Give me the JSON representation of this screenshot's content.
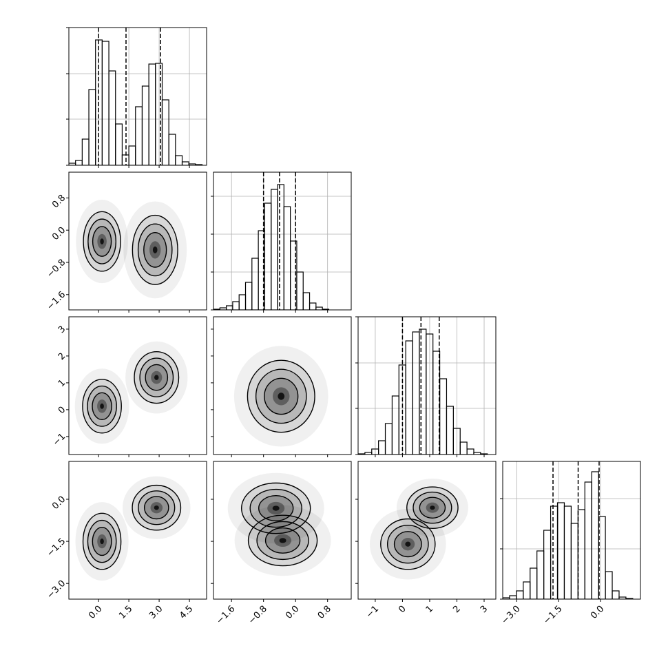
{
  "chart_data": [
    {
      "type": "histogram",
      "xlim": [
        -1.47,
        5.35
      ],
      "xticks": [
        {
          "value": 0,
          "label": "0.0"
        },
        1.5,
        {
          "value": 3,
          "label": "3.0"
        },
        4.5
      ],
      "ylim": [
        0,
        200
      ],
      "yticks": [
        0,
        67,
        133,
        200
      ],
      "grid": true,
      "bins": [
        -1.47,
        -1.14,
        -0.81,
        -0.48,
        -0.15,
        0.18,
        0.51,
        0.84,
        1.17,
        1.5,
        1.83,
        2.16,
        2.49,
        2.82,
        3.15,
        3.48,
        3.81,
        4.14,
        4.47,
        4.8,
        5.13
      ],
      "values": [
        3,
        7,
        38,
        110,
        182,
        180,
        137,
        60,
        15,
        28,
        85,
        115,
        147,
        148,
        95,
        45,
        14,
        5,
        2,
        1
      ],
      "quantiles": [
        0.0,
        1.36,
        3.07
      ]
    },
    {
      "type": "contour",
      "xlim": [
        -1.47,
        5.35
      ],
      "xticks": [
        {
          "value": 0,
          "label": "0.0"
        },
        1.5,
        {
          "value": 3,
          "label": "3.0"
        },
        4.5
      ],
      "ylim": [
        -1.98,
        1.44
      ],
      "yticks": [
        {
          "value": -1.6,
          "label": "−1.6"
        },
        {
          "value": -0.8,
          "label": "−0.8"
        },
        {
          "value": 0,
          "label": "0.0"
        },
        0.8
      ],
      "modes": [
        {
          "x": 0.17,
          "y": -0.28,
          "sx": 0.46,
          "sy": 0.37
        },
        {
          "x": 2.8,
          "y": -0.49,
          "sx": 0.56,
          "sy": 0.43
        }
      ]
    },
    {
      "type": "histogram",
      "xlim": [
        -2.05,
        1.39
      ],
      "xticks": [
        {
          "value": -1.6,
          "label": "−1.6"
        },
        {
          "value": -0.8,
          "label": "−0.8"
        },
        {
          "value": 0,
          "label": "0.0"
        },
        0.8
      ],
      "ylim": [
        0,
        200
      ],
      "yticks": [
        0,
        55,
        110,
        165
      ],
      "grid": true,
      "bins": [
        -2.05,
        -1.89,
        -1.73,
        -1.57,
        -1.41,
        -1.25,
        -1.09,
        -0.93,
        -0.77,
        -0.61,
        -0.45,
        -0.29,
        -0.13,
        0.03,
        0.19,
        0.35,
        0.51,
        0.67,
        0.83,
        0.99,
        1.15
      ],
      "values": [
        1,
        3,
        6,
        12,
        22,
        40,
        75,
        115,
        155,
        175,
        182,
        150,
        100,
        55,
        25,
        10,
        4,
        1,
        0,
        0
      ],
      "quantiles": [
        -0.8,
        -0.4,
        0.0
      ]
    },
    {
      "type": "contour",
      "xlim": [
        -1.47,
        5.35
      ],
      "xticks": [
        {
          "value": 0,
          "label": "0.0"
        },
        1.5,
        {
          "value": 3,
          "label": "3.0"
        },
        4.5
      ],
      "ylim": [
        -1.67,
        3.46
      ],
      "yticks": [
        {
          "value": -1,
          "label": "−1"
        },
        0,
        1,
        2,
        3
      ],
      "modes": [
        {
          "x": 0.17,
          "y": 0.13,
          "sx": 0.48,
          "sy": 0.5
        },
        {
          "x": 2.87,
          "y": 1.2,
          "sx": 0.55,
          "sy": 0.48
        }
      ]
    },
    {
      "type": "contour",
      "xlim": [
        -2.05,
        1.39
      ],
      "xticks": [
        {
          "value": -1.6,
          "label": "−1.6"
        },
        {
          "value": -0.8,
          "label": "−0.8"
        },
        {
          "value": 0,
          "label": "0.0"
        },
        0.8
      ],
      "ylim": [
        -1.67,
        3.46
      ],
      "yticks": [
        {
          "value": -1,
          "label": "−1"
        },
        0,
        1,
        2,
        3
      ],
      "modes": [
        {
          "x": -0.36,
          "y": 0.5,
          "sx": 0.42,
          "sy": 0.67
        }
      ]
    },
    {
      "type": "histogram",
      "xlim": [
        -1.63,
        3.43
      ],
      "xticks": [
        {
          "value": -1,
          "label": "−1"
        },
        0,
        1,
        2,
        3
      ],
      "ylim": [
        0,
        200
      ],
      "yticks": [
        0,
        67,
        133,
        200
      ],
      "grid": true,
      "bins": [
        -1.63,
        -1.38,
        -1.13,
        -0.88,
        -0.63,
        -0.38,
        -0.13,
        0.12,
        0.37,
        0.62,
        0.87,
        1.12,
        1.37,
        1.62,
        1.87,
        2.12,
        2.37,
        2.62,
        2.87,
        3.12,
        3.37
      ],
      "values": [
        1,
        3,
        8,
        20,
        45,
        85,
        130,
        165,
        178,
        182,
        175,
        150,
        110,
        70,
        38,
        18,
        8,
        3,
        1,
        0
      ],
      "quantiles": [
        0.0,
        0.68,
        1.35
      ]
    },
    {
      "type": "contour",
      "xlim": [
        -1.47,
        5.35
      ],
      "xticks": [
        {
          "value": 0,
          "label": "0.0"
        },
        1.5,
        {
          "value": 3,
          "label": "3.0"
        },
        4.5
      ],
      "ylim": [
        -3.56,
        1.35
      ],
      "yticks": [
        {
          "value": -3,
          "label": "−3.0"
        },
        {
          "value": -1.5,
          "label": "−1.5"
        },
        {
          "value": 0,
          "label": "0.0"
        }
      ],
      "modes": [
        {
          "x": 0.17,
          "y": -1.5,
          "sx": 0.47,
          "sy": 0.5
        },
        {
          "x": 2.87,
          "y": -0.3,
          "sx": 0.6,
          "sy": 0.4
        }
      ]
    },
    {
      "type": "contour",
      "xlim": [
        -2.05,
        1.39
      ],
      "xticks": [
        {
          "value": -1.6,
          "label": "−1.6"
        },
        {
          "value": -0.8,
          "label": "−0.8"
        },
        {
          "value": 0,
          "label": "0.0"
        },
        0.8
      ],
      "ylim": [
        -3.56,
        1.35
      ],
      "yticks": [
        {
          "value": -3,
          "label": "−3.0"
        },
        {
          "value": -1.5,
          "label": "−1.5"
        },
        {
          "value": 0,
          "label": "0.0"
        }
      ],
      "modes": [
        {
          "x": -0.49,
          "y": -0.32,
          "sx": 0.43,
          "sy": 0.45
        },
        {
          "x": -0.32,
          "y": -1.47,
          "sx": 0.43,
          "sy": 0.45
        }
      ]
    },
    {
      "type": "contour",
      "xlim": [
        -1.63,
        3.43
      ],
      "xticks": [
        {
          "value": -1,
          "label": "−1"
        },
        0,
        1,
        2,
        3
      ],
      "ylim": [
        -3.56,
        1.35
      ],
      "yticks": [
        {
          "value": -3,
          "label": "−3.0"
        },
        {
          "value": -1.5,
          "label": "−1.5"
        },
        {
          "value": 0,
          "label": "0.0"
        }
      ],
      "modes": [
        {
          "x": 0.2,
          "y": -1.6,
          "sx": 0.5,
          "sy": 0.45
        },
        {
          "x": 1.1,
          "y": -0.3,
          "sx": 0.47,
          "sy": 0.37
        }
      ]
    },
    {
      "type": "histogram",
      "xlim": [
        -3.5,
        1.43
      ],
      "xticks": [
        {
          "value": -3,
          "label": "−3.0"
        },
        {
          "value": -1.5,
          "label": "−1.5"
        },
        {
          "value": 0,
          "label": "0.0"
        }
      ],
      "ylim": [
        0,
        200
      ],
      "yticks": [
        0,
        73,
        146
      ],
      "grid": true,
      "bins": [
        -3.5,
        -3.255,
        -3.01,
        -2.765,
        -2.52,
        -2.275,
        -2.03,
        -1.785,
        -1.54,
        -1.295,
        -1.05,
        -0.805,
        -0.56,
        -0.315,
        -0.07,
        0.175,
        0.42,
        0.665,
        0.91,
        1.155,
        1.4
      ],
      "values": [
        2,
        5,
        12,
        25,
        45,
        70,
        100,
        135,
        140,
        135,
        110,
        130,
        170,
        185,
        120,
        40,
        12,
        3,
        1,
        0
      ],
      "quantiles": [
        -1.7,
        -0.8,
        -0.05
      ]
    }
  ]
}
